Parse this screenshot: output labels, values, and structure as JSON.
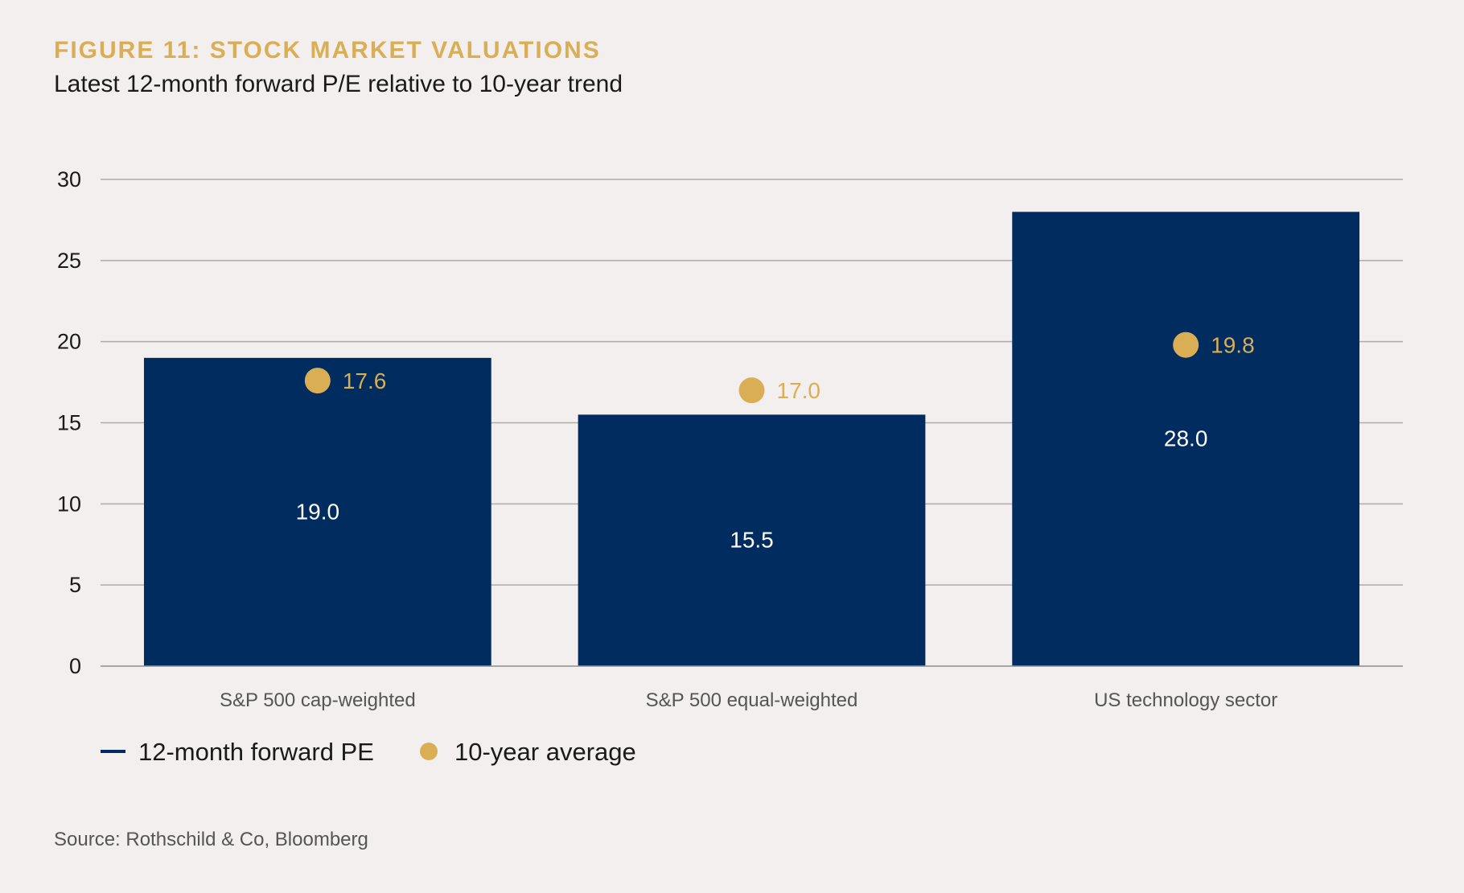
{
  "header": {
    "title": "FIGURE 11: STOCK MARKET VALUATIONS",
    "subtitle": "Latest 12-month forward P/E relative to 10-year trend"
  },
  "source": "Source: Rothschild & Co, Bloomberg",
  "colors": {
    "background": "#f3efee",
    "bar": "#002c5f",
    "dot": "#d9ae55",
    "grid": "#b0aaa8"
  },
  "chart_data": {
    "type": "bar",
    "categories": [
      "S&P 500 cap-weighted",
      "S&P 500 equal-weighted",
      "US technology sector"
    ],
    "series": [
      {
        "name": "12-month forward PE",
        "kind": "bar",
        "values": [
          19.0,
          15.5,
          28.0
        ],
        "labels": [
          "19.0",
          "15.5",
          "28.0"
        ]
      },
      {
        "name": "10-year average",
        "kind": "dot",
        "values": [
          17.6,
          17.0,
          19.8
        ],
        "labels": [
          "17.6",
          "17.0",
          "19.8"
        ]
      }
    ],
    "ylim": [
      0,
      30
    ],
    "yticks": [
      0,
      5,
      10,
      15,
      20,
      25,
      30
    ],
    "ytick_labels": [
      "0",
      "5",
      "10",
      "15",
      "20",
      "25",
      "30"
    ],
    "grid": true,
    "legend": "bottom-left"
  }
}
